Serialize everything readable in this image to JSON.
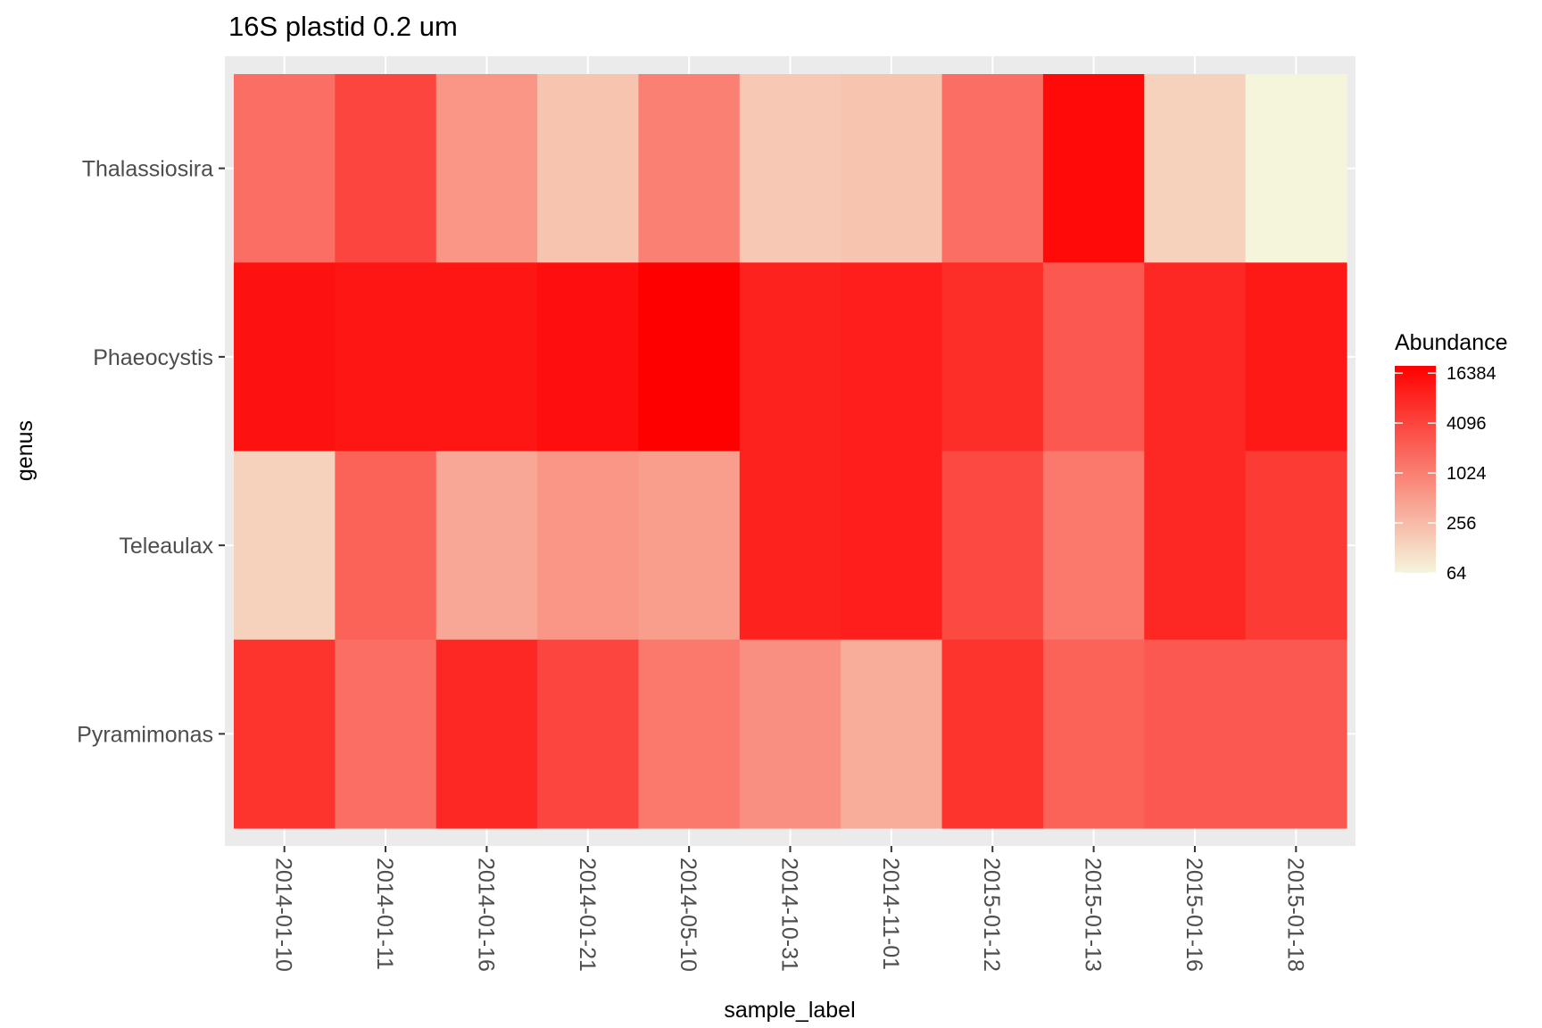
{
  "chart_data": {
    "type": "heatmap",
    "title": "16S plastid 0.2 um",
    "xlabel": "sample_label",
    "ylabel": "genus",
    "x": [
      "2014-01-10",
      "2014-01-11",
      "2014-01-16",
      "2014-01-21",
      "2014-05-10",
      "2014-10-31",
      "2014-11-01",
      "2015-01-12",
      "2015-01-13",
      "2015-01-16",
      "2015-01-18"
    ],
    "y": [
      "Thalassiosira",
      "Phaeocystis",
      "Teleaulax",
      "Pyramimonas"
    ],
    "values": [
      [
        1500,
        4000,
        600,
        200,
        1000,
        180,
        200,
        1500,
        16000,
        150,
        64
      ],
      [
        13000,
        12000,
        12000,
        14000,
        20000,
        9000,
        10000,
        7000,
        2500,
        8000,
        11000
      ],
      [
        150,
        2000,
        400,
        600,
        500,
        9000,
        10000,
        3500,
        1200,
        8000,
        5000
      ],
      [
        6000,
        1500,
        8000,
        4000,
        1200,
        700,
        350,
        6000,
        2000,
        2500,
        2500
      ]
    ],
    "colorscale": {
      "low": "#f5f5dc",
      "high": "#ff0000",
      "scale": "log2",
      "range": [
        64,
        20000
      ]
    },
    "legend": {
      "title": "Abundance",
      "breaks": [
        16384,
        4096,
        1024,
        256,
        64
      ],
      "position": "right"
    },
    "grid": true,
    "panel_background": "#ebebeb"
  }
}
